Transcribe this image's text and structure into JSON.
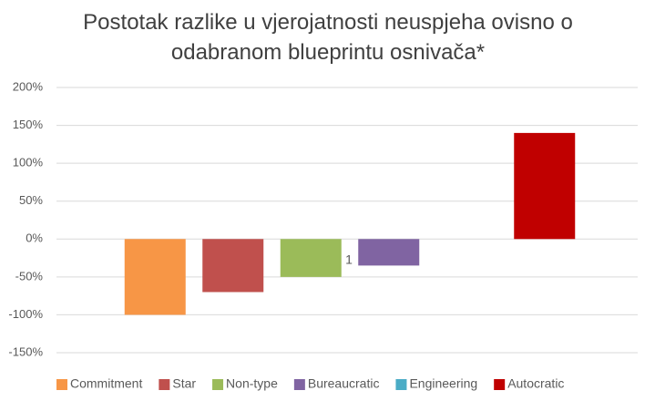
{
  "chart_data": {
    "type": "bar",
    "title": "Postotak razlike u vjerojatnosti neuspjeha ovisno o odabranom blueprintu osnivača*",
    "annotation": "1",
    "series": [
      {
        "name": "Commitment",
        "color": "#f79646",
        "values": [
          -100
        ]
      },
      {
        "name": "Star",
        "color": "#c0504d",
        "values": [
          -70
        ]
      },
      {
        "name": "Non-type",
        "color": "#9bbb59",
        "values": [
          -50
        ]
      },
      {
        "name": "Bureaucratic",
        "color": "#8064a2",
        "values": [
          -35
        ]
      },
      {
        "name": "Engineering",
        "color": "#4bacc6",
        "values": [
          0
        ]
      },
      {
        "name": "Autocratic",
        "color": "#c00000",
        "values": [
          140
        ]
      }
    ],
    "ylim": [
      -150,
      200
    ],
    "yticks": [
      {
        "value": -150,
        "label": "-150%"
      },
      {
        "value": -100,
        "label": "-100%"
      },
      {
        "value": -50,
        "label": "-50%"
      },
      {
        "value": 0,
        "label": "0%"
      },
      {
        "value": 50,
        "label": "50%"
      },
      {
        "value": 100,
        "label": "100%"
      },
      {
        "value": 150,
        "label": "150%"
      },
      {
        "value": 200,
        "label": "200%"
      }
    ],
    "grid": true,
    "legend": "bottom"
  }
}
